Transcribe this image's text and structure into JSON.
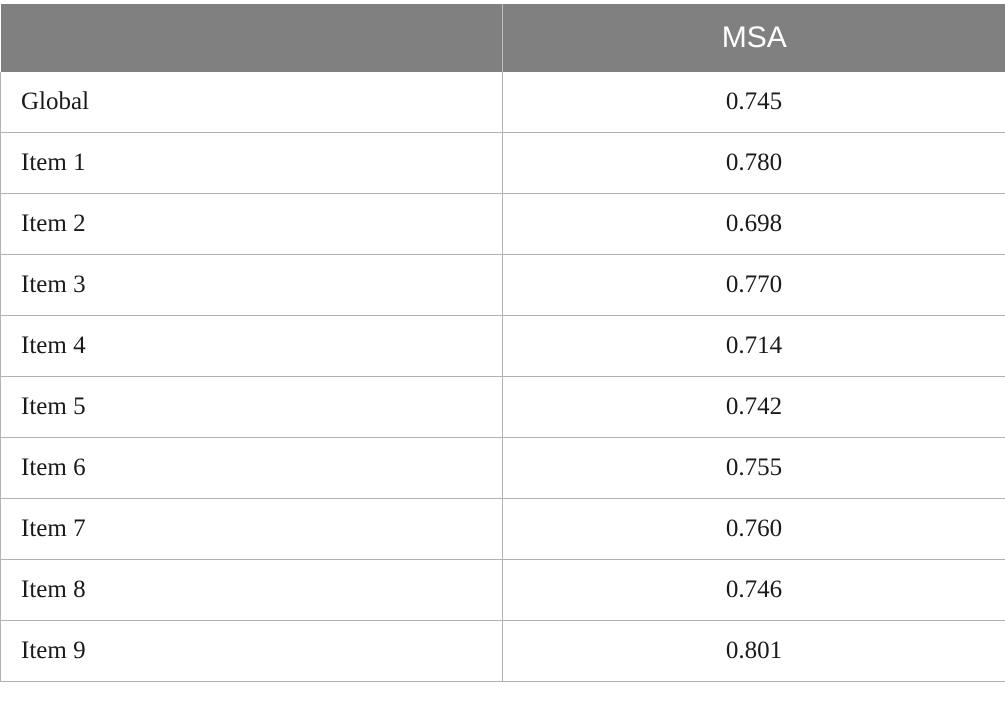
{
  "table": {
    "header": {
      "label": "",
      "value": "MSA"
    },
    "rows": [
      {
        "label": "Global",
        "value": "0.745"
      },
      {
        "label": "Item 1",
        "value": "0.780"
      },
      {
        "label": "Item 2",
        "value": "0.698"
      },
      {
        "label": "Item 3",
        "value": "0.770"
      },
      {
        "label": "Item 4",
        "value": "0.714"
      },
      {
        "label": "Item 5",
        "value": "0.742"
      },
      {
        "label": "Item 6",
        "value": "0.755"
      },
      {
        "label": "Item 7",
        "value": "0.760"
      },
      {
        "label": "Item 8",
        "value": "0.746"
      },
      {
        "label": "Item 9",
        "value": "0.801"
      }
    ]
  },
  "colors": {
    "header_background": "#808080",
    "header_text": "#ffffff",
    "grid_line": "#b3b3b3"
  }
}
